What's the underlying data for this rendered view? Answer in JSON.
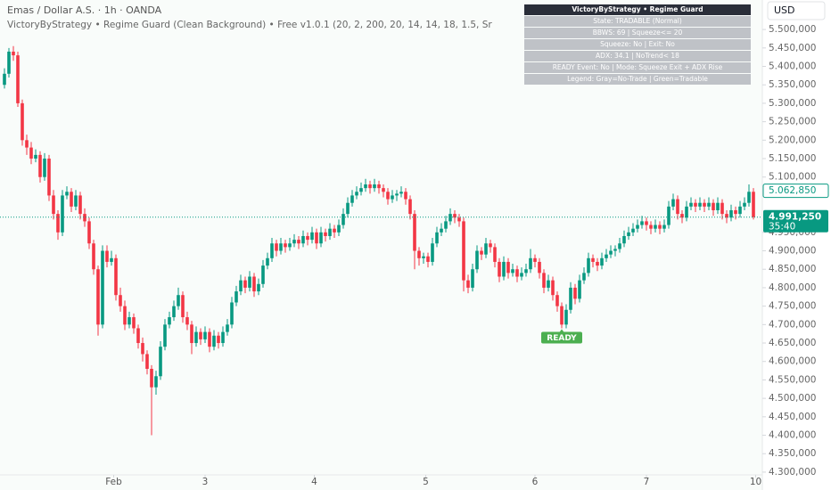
{
  "chart_data": {
    "type": "candlestick",
    "title": "Emas / Dollar A.S. · 1h · OANDA",
    "subtitle": "VictoryByStrategy • Regime Guard (Clean Background) • Free v1.0.1 (20, 2, 200, 20, 14, 14, 18, 1.5, Sr",
    "currency": "USD",
    "up_color": "#089981",
    "down_color": "#f23645",
    "candles": [
      [
        5350,
        5395,
        5340,
        5380
      ],
      [
        5380,
        5450,
        5370,
        5440
      ],
      [
        5440,
        5455,
        5415,
        5430
      ],
      [
        5430,
        5440,
        5290,
        5300
      ],
      [
        5300,
        5310,
        5185,
        5200
      ],
      [
        5200,
        5215,
        5160,
        5180
      ],
      [
        5180,
        5195,
        5135,
        5150
      ],
      [
        5150,
        5175,
        5140,
        5160
      ],
      [
        5160,
        5170,
        5085,
        5100
      ],
      [
        5100,
        5165,
        5090,
        5150
      ],
      [
        5150,
        5160,
        5035,
        5050
      ],
      [
        5050,
        5065,
        4985,
        5000
      ],
      [
        5000,
        5010,
        4930,
        4950
      ],
      [
        4950,
        5065,
        4940,
        5050
      ],
      [
        5050,
        5075,
        5040,
        5060
      ],
      [
        5060,
        5070,
        5005,
        5020
      ],
      [
        5020,
        5065,
        5010,
        5050
      ],
      [
        5050,
        5060,
        4985,
        5000
      ],
      [
        5000,
        5015,
        4965,
        4980
      ],
      [
        4980,
        4990,
        4905,
        4920
      ],
      [
        4920,
        4930,
        4835,
        4850
      ],
      [
        4850,
        4860,
        4670,
        4700
      ],
      [
        4700,
        4915,
        4690,
        4900
      ],
      [
        4900,
        4915,
        4855,
        4870
      ],
      [
        4870,
        4900,
        4860,
        4880
      ],
      [
        4880,
        4890,
        4765,
        4780
      ],
      [
        4780,
        4800,
        4735,
        4750
      ],
      [
        4750,
        4765,
        4685,
        4700
      ],
      [
        4700,
        4735,
        4690,
        4720
      ],
      [
        4720,
        4730,
        4675,
        4690
      ],
      [
        4690,
        4700,
        4635,
        4650
      ],
      [
        4650,
        4665,
        4600,
        4620
      ],
      [
        4620,
        4630,
        4565,
        4580
      ],
      [
        4580,
        4590,
        4400,
        4530
      ],
      [
        4530,
        4575,
        4510,
        4560
      ],
      [
        4560,
        4655,
        4550,
        4640
      ],
      [
        4640,
        4715,
        4630,
        4700
      ],
      [
        4700,
        4735,
        4690,
        4720
      ],
      [
        4720,
        4765,
        4710,
        4750
      ],
      [
        4750,
        4800,
        4740,
        4780
      ],
      [
        4780,
        4790,
        4705,
        4720
      ],
      [
        4720,
        4735,
        4685,
        4700
      ],
      [
        4700,
        4710,
        4620,
        4650
      ],
      [
        4650,
        4695,
        4640,
        4680
      ],
      [
        4680,
        4690,
        4645,
        4660
      ],
      [
        4660,
        4695,
        4650,
        4680
      ],
      [
        4680,
        4690,
        4625,
        4640
      ],
      [
        4640,
        4685,
        4630,
        4670
      ],
      [
        4670,
        4680,
        4635,
        4650
      ],
      [
        4650,
        4695,
        4640,
        4680
      ],
      [
        4680,
        4715,
        4670,
        4700
      ],
      [
        4700,
        4775,
        4690,
        4760
      ],
      [
        4760,
        4805,
        4750,
        4790
      ],
      [
        4790,
        4835,
        4780,
        4820
      ],
      [
        4820,
        4830,
        4785,
        4800
      ],
      [
        4800,
        4845,
        4790,
        4830
      ],
      [
        4830,
        4840,
        4775,
        4790
      ],
      [
        4790,
        4825,
        4780,
        4810
      ],
      [
        4810,
        4875,
        4800,
        4860
      ],
      [
        4860,
        4895,
        4850,
        4880
      ],
      [
        4880,
        4935,
        4870,
        4920
      ],
      [
        4920,
        4930,
        4885,
        4900
      ],
      [
        4900,
        4935,
        4890,
        4920
      ],
      [
        4920,
        4930,
        4895,
        4910
      ],
      [
        4910,
        4935,
        4900,
        4920
      ],
      [
        4920,
        4945,
        4910,
        4930
      ],
      [
        4930,
        4940,
        4905,
        4920
      ],
      [
        4920,
        4955,
        4910,
        4940
      ],
      [
        4940,
        4950,
        4915,
        4930
      ],
      [
        4930,
        4965,
        4920,
        4950
      ],
      [
        4950,
        4960,
        4905,
        4920
      ],
      [
        4920,
        4965,
        4910,
        4950
      ],
      [
        4950,
        4960,
        4925,
        4940
      ],
      [
        4940,
        4975,
        4930,
        4960
      ],
      [
        4960,
        4970,
        4935,
        4950
      ],
      [
        4950,
        4985,
        4940,
        4970
      ],
      [
        4970,
        5015,
        4960,
        5000
      ],
      [
        5000,
        5045,
        4990,
        5030
      ],
      [
        5030,
        5065,
        5020,
        5050
      ],
      [
        5050,
        5075,
        5040,
        5060
      ],
      [
        5060,
        5085,
        5050,
        5070
      ],
      [
        5070,
        5095,
        5060,
        5080
      ],
      [
        5080,
        5090,
        5055,
        5070
      ],
      [
        5070,
        5095,
        5060,
        5080
      ],
      [
        5080,
        5090,
        5055,
        5070
      ],
      [
        5070,
        5080,
        5045,
        5060
      ],
      [
        5060,
        5070,
        5025,
        5040
      ],
      [
        5040,
        5065,
        5030,
        5050
      ],
      [
        5050,
        5065,
        5035,
        5055
      ],
      [
        5055,
        5075,
        5045,
        5060
      ],
      [
        5060,
        5070,
        5025,
        5040
      ],
      [
        5040,
        5050,
        4985,
        5000
      ],
      [
        5000,
        5010,
        4850,
        4900
      ],
      [
        4900,
        4910,
        4860,
        4880
      ],
      [
        4880,
        4895,
        4865,
        4885
      ],
      [
        4885,
        4895,
        4855,
        4870
      ],
      [
        4870,
        4935,
        4860,
        4920
      ],
      [
        4920,
        4965,
        4910,
        4950
      ],
      [
        4950,
        4975,
        4940,
        4960
      ],
      [
        4960,
        4995,
        4950,
        4980
      ],
      [
        4980,
        5015,
        4970,
        5000
      ],
      [
        5000,
        5010,
        4975,
        4990
      ],
      [
        4990,
        5000,
        4965,
        4980
      ],
      [
        4980,
        4990,
        4790,
        4820
      ],
      [
        4820,
        4835,
        4785,
        4800
      ],
      [
        4800,
        4865,
        4790,
        4850
      ],
      [
        4850,
        4915,
        4840,
        4900
      ],
      [
        4900,
        4910,
        4875,
        4890
      ],
      [
        4890,
        4935,
        4880,
        4920
      ],
      [
        4920,
        4930,
        4895,
        4910
      ],
      [
        4910,
        4920,
        4855,
        4870
      ],
      [
        4870,
        4880,
        4815,
        4830
      ],
      [
        4830,
        4885,
        4820,
        4870
      ],
      [
        4870,
        4880,
        4825,
        4840
      ],
      [
        4840,
        4865,
        4830,
        4850
      ],
      [
        4850,
        4860,
        4815,
        4830
      ],
      [
        4830,
        4855,
        4820,
        4840
      ],
      [
        4840,
        4865,
        4830,
        4850
      ],
      [
        4850,
        4905,
        4840,
        4880
      ],
      [
        4880,
        4890,
        4855,
        4870
      ],
      [
        4870,
        4880,
        4825,
        4840
      ],
      [
        4840,
        4850,
        4785,
        4800
      ],
      [
        4800,
        4835,
        4790,
        4820
      ],
      [
        4820,
        4830,
        4765,
        4780
      ],
      [
        4780,
        4790,
        4735,
        4750
      ],
      [
        4750,
        4760,
        4690,
        4700
      ],
      [
        4700,
        4755,
        4690,
        4740
      ],
      [
        4740,
        4815,
        4730,
        4800
      ],
      [
        4800,
        4810,
        4755,
        4770
      ],
      [
        4770,
        4835,
        4760,
        4820
      ],
      [
        4820,
        4855,
        4810,
        4840
      ],
      [
        4840,
        4895,
        4830,
        4880
      ],
      [
        4880,
        4890,
        4855,
        4870
      ],
      [
        4870,
        4880,
        4845,
        4860
      ],
      [
        4860,
        4895,
        4850,
        4880
      ],
      [
        4880,
        4905,
        4870,
        4890
      ],
      [
        4890,
        4915,
        4880,
        4900
      ],
      [
        4900,
        4915,
        4885,
        4905
      ],
      [
        4905,
        4935,
        4895,
        4920
      ],
      [
        4920,
        4955,
        4910,
        4940
      ],
      [
        4940,
        4965,
        4930,
        4950
      ],
      [
        4950,
        4975,
        4940,
        4960
      ],
      [
        4960,
        4985,
        4950,
        4970
      ],
      [
        4970,
        4995,
        4960,
        4980
      ],
      [
        4980,
        4990,
        4955,
        4970
      ],
      [
        4970,
        4980,
        4945,
        4960
      ],
      [
        4960,
        4985,
        4950,
        4970
      ],
      [
        4970,
        4980,
        4945,
        4960
      ],
      [
        4960,
        4985,
        4950,
        4970
      ],
      [
        4970,
        5035,
        4960,
        5020
      ],
      [
        5020,
        5055,
        5010,
        5040
      ],
      [
        5040,
        5050,
        4985,
        5000
      ],
      [
        5000,
        5010,
        4975,
        4990
      ],
      [
        4990,
        5035,
        4980,
        5020
      ],
      [
        5020,
        5045,
        5010,
        5030
      ],
      [
        5030,
        5040,
        5005,
        5020
      ],
      [
        5020,
        5045,
        5010,
        5030
      ],
      [
        5030,
        5040,
        5005,
        5020
      ],
      [
        5020,
        5045,
        5010,
        5030
      ],
      [
        5030,
        5040,
        4995,
        5010
      ],
      [
        5010,
        5045,
        5000,
        5030
      ],
      [
        5030,
        5040,
        4985,
        5000
      ],
      [
        5000,
        5010,
        4975,
        4990
      ],
      [
        4990,
        5025,
        4980,
        5010
      ],
      [
        5010,
        5020,
        4985,
        5000
      ],
      [
        5000,
        5035,
        4990,
        5020
      ],
      [
        5020,
        5045,
        5010,
        5030
      ],
      [
        5030,
        5080,
        5020,
        5060
      ],
      [
        5060,
        5070,
        4985,
        4991.25
      ]
    ],
    "xlim": [
      -1,
      169.6
    ],
    "xticks": [
      {
        "value": 24.5,
        "label": "Feb"
      },
      {
        "value": 45,
        "label": "3"
      },
      {
        "value": 69.5,
        "label": "4"
      },
      {
        "value": 94.5,
        "label": "5"
      },
      {
        "value": 119,
        "label": "6"
      },
      {
        "value": 144,
        "label": "7"
      },
      {
        "value": 168.5,
        "label": "10"
      }
    ],
    "ylim": [
      4295,
      5580
    ],
    "yticks": [
      {
        "value": 4300,
        "label": "4.300,000"
      },
      {
        "value": 4350,
        "label": "4.350,000"
      },
      {
        "value": 4400,
        "label": "4.400,000"
      },
      {
        "value": 4450,
        "label": "4.450,000"
      },
      {
        "value": 4500,
        "label": "4.500,000"
      },
      {
        "value": 4550,
        "label": "4.550,000"
      },
      {
        "value": 4600,
        "label": "4.600,000"
      },
      {
        "value": 4650,
        "label": "4.650,000"
      },
      {
        "value": 4700,
        "label": "4.700,000"
      },
      {
        "value": 4750,
        "label": "4.750,000"
      },
      {
        "value": 4800,
        "label": "4.800,000"
      },
      {
        "value": 4850,
        "label": "4.850,000"
      },
      {
        "value": 4900,
        "label": "4.900,000"
      },
      {
        "value": 4950,
        "label": "4.950,000"
      },
      {
        "value": 5100,
        "label": "5.100,000"
      },
      {
        "value": 5150,
        "label": "5.150,000"
      },
      {
        "value": 5200,
        "label": "5.200,000"
      },
      {
        "value": 5250,
        "label": "5.250,000"
      },
      {
        "value": 5300,
        "label": "5.300,000"
      },
      {
        "value": 5350,
        "label": "5.350,000"
      },
      {
        "value": 5400,
        "label": "5.400,000"
      },
      {
        "value": 5450,
        "label": "5.450,000"
      },
      {
        "value": 5500,
        "label": "5.500,000"
      }
    ],
    "price_lines": [
      {
        "value": 5062.85,
        "label": "5.062,850",
        "style": "outline"
      },
      {
        "value": 4991.25,
        "label": "4.991,250",
        "countdown": "35:40",
        "style": "solid"
      }
    ],
    "annotations": [
      {
        "text": "READY",
        "at": 125
      }
    ]
  },
  "overlay_table": {
    "title": "VictoryByStrategy • Regime Guard",
    "rows": [
      "State: TRADABLE (Normal)",
      "BBWS: 69 | Squeeze<= 20",
      "Squeeze: No | Exit: No",
      "ADX: 34.1 | NoTrend< 18",
      "READY Event: No | Mode: Squeeze Exit + ADX Rise",
      "Legend: Gray=No-Trade | Green=Tradable"
    ]
  }
}
